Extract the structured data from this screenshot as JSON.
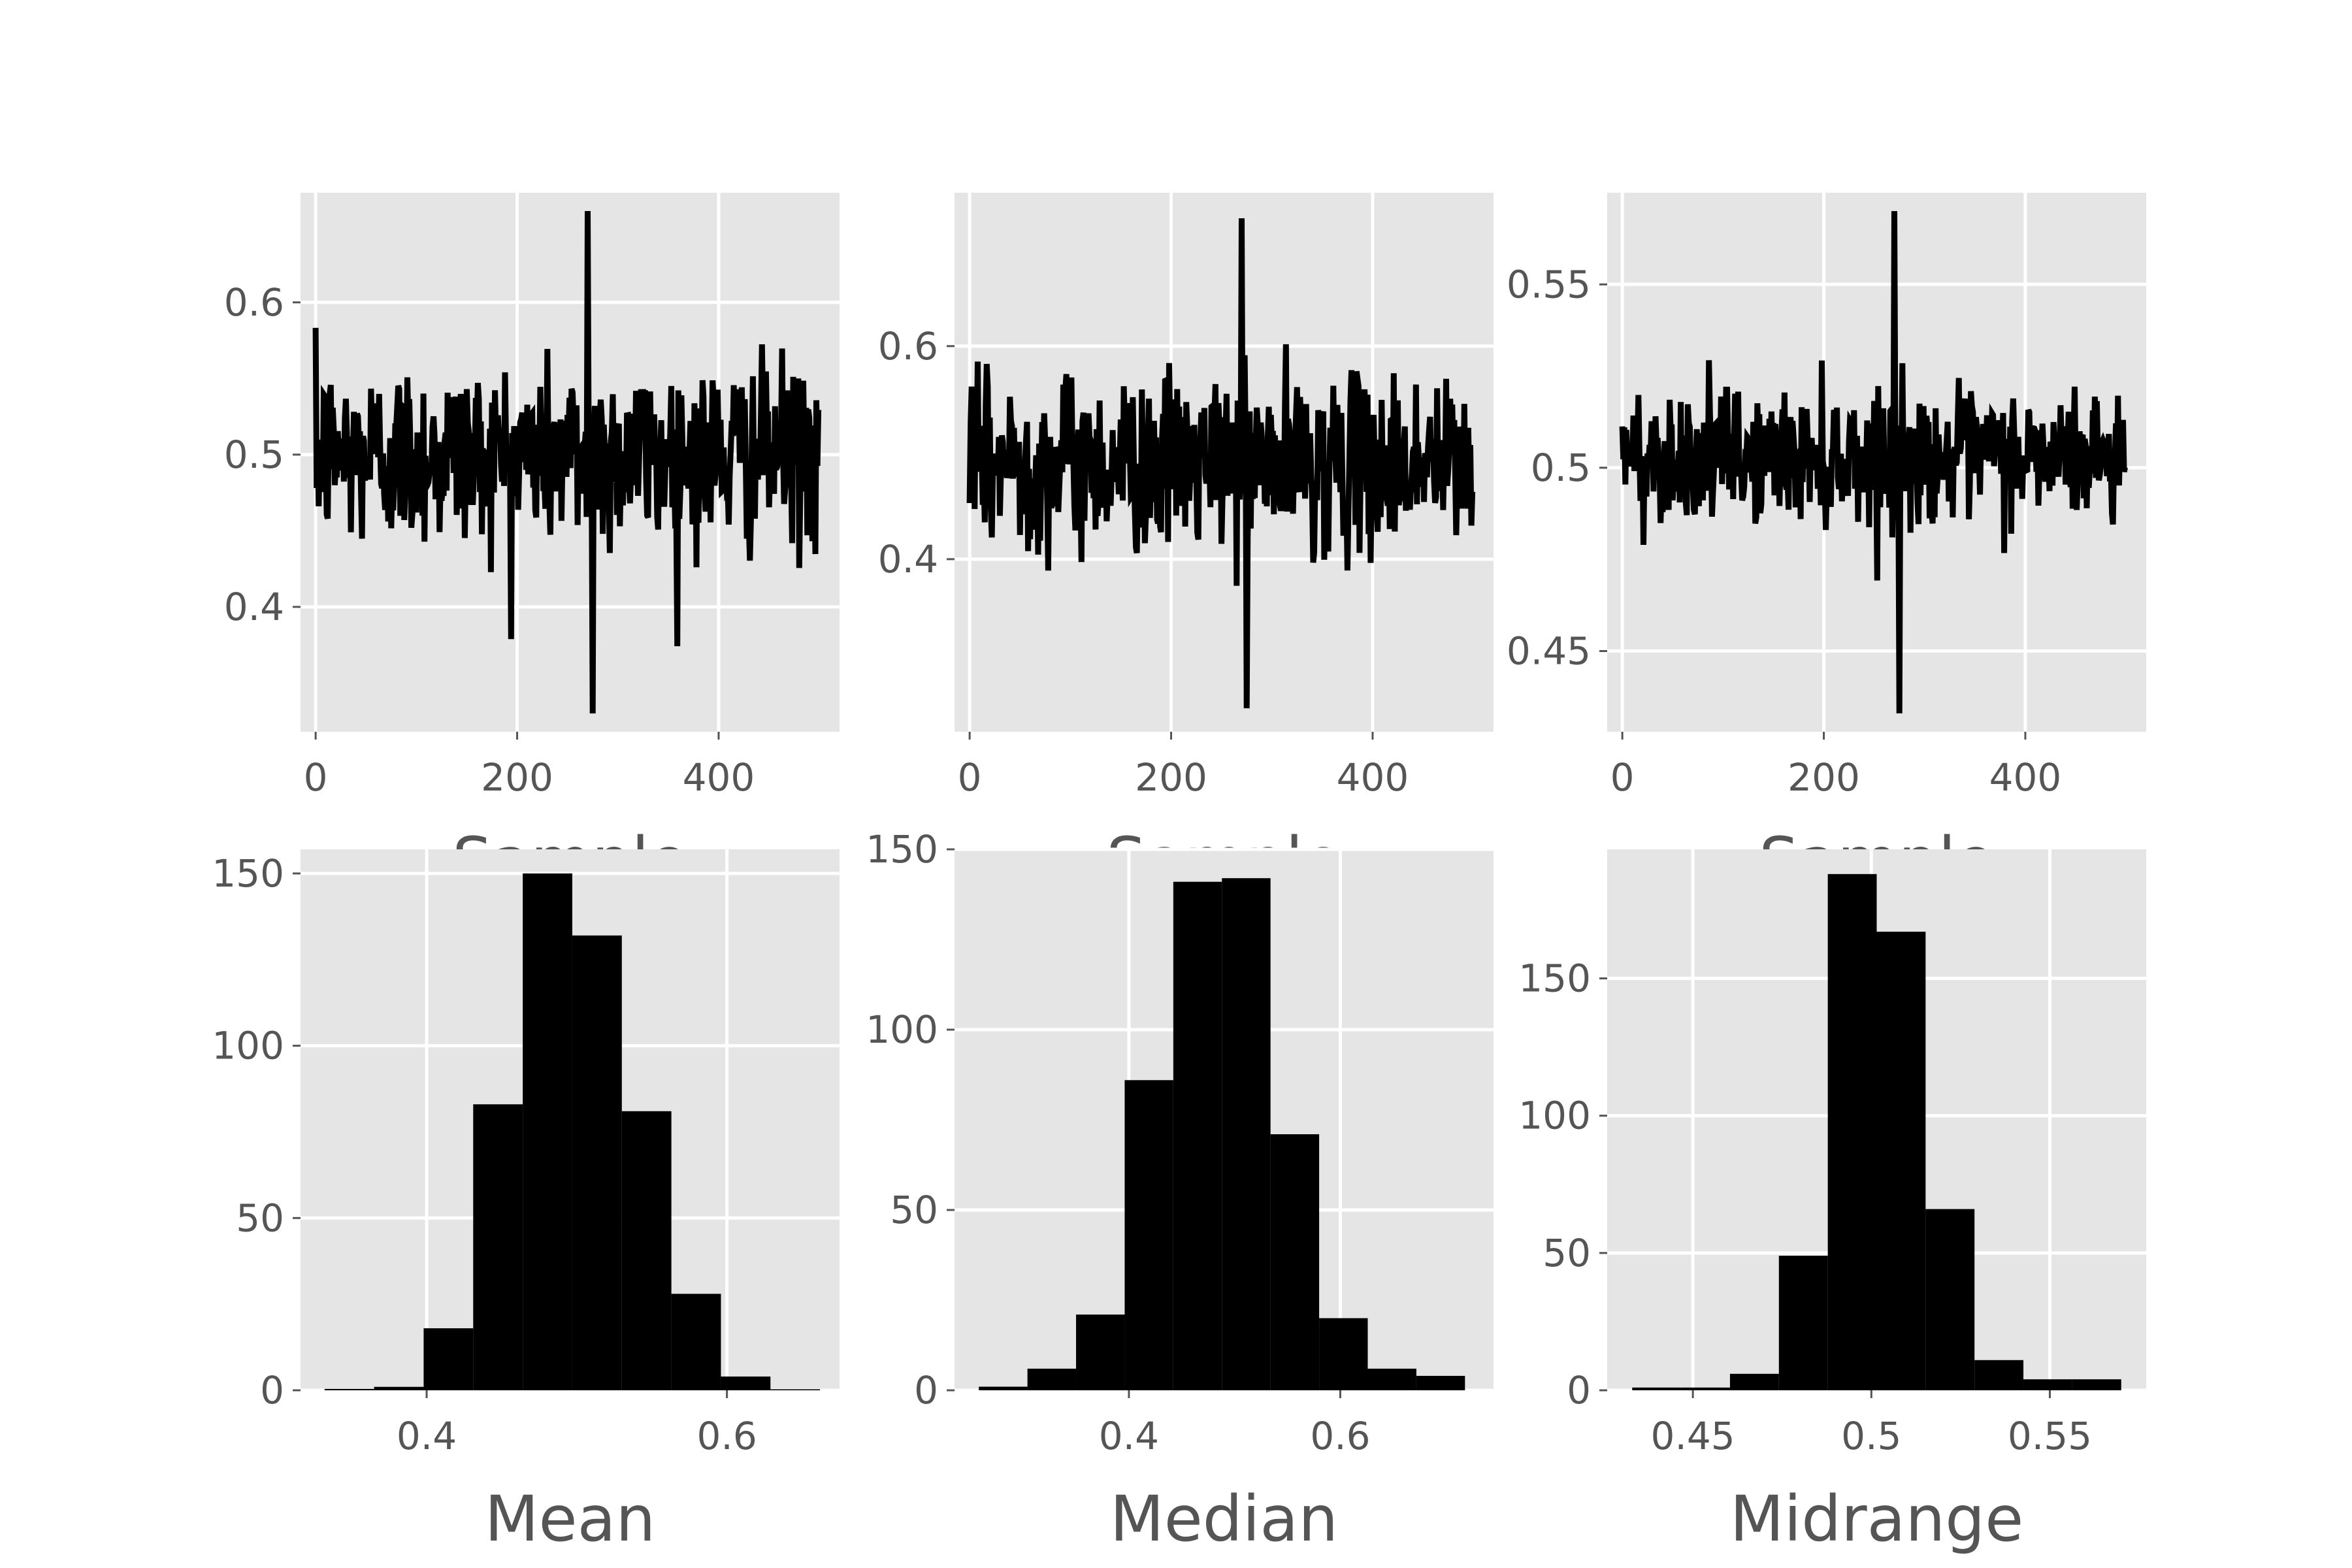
{
  "colors": {
    "panel_background": "#E5E5E5",
    "grid": "#FFFFFF",
    "mark": "#000000",
    "tick_text": "#555555"
  },
  "chart_data": [
    {
      "type": "line",
      "xlabel": "Sample",
      "xlim": [
        -15,
        520
      ],
      "ylim": [
        0.318,
        0.672
      ],
      "xticks": [
        0,
        200,
        400
      ],
      "yticks": [
        0.4,
        0.5,
        0.6
      ],
      "grid": true,
      "summary": {
        "n": 500,
        "center": 0.5,
        "typical_low": 0.44,
        "typical_high": 0.56,
        "min": 0.33,
        "max": 0.66
      }
    },
    {
      "type": "line",
      "xlabel": "Sample",
      "xlim": [
        -15,
        520
      ],
      "ylim": [
        0.238,
        0.744
      ],
      "xticks": [
        0,
        200,
        400
      ],
      "yticks": [
        0.4,
        0.6
      ],
      "grid": true,
      "summary": {
        "n": 500,
        "center": 0.49,
        "typical_low": 0.42,
        "typical_high": 0.58,
        "min": 0.26,
        "max": 0.72
      }
    },
    {
      "type": "line",
      "xlabel": "Sample",
      "xlim": [
        -15,
        520
      ],
      "ylim": [
        0.428,
        0.575
      ],
      "xticks": [
        0,
        200,
        400
      ],
      "yticks": [
        0.45,
        0.5,
        0.55
      ],
      "grid": true,
      "summary": {
        "n": 500,
        "center": 0.503,
        "typical_low": 0.485,
        "typical_high": 0.52,
        "min": 0.433,
        "max": 0.57
      }
    },
    {
      "type": "bar",
      "xlabel": "Mean",
      "xlim": [
        0.316,
        0.675
      ],
      "ylim": [
        0,
        157
      ],
      "xticks": [
        0.4,
        0.6
      ],
      "yticks": [
        0,
        50,
        100,
        150
      ],
      "grid": true,
      "bin_edges": [
        0.332,
        0.365,
        0.398,
        0.431,
        0.464,
        0.497,
        0.53,
        0.563,
        0.596,
        0.629,
        0.662
      ],
      "counts": [
        0.4,
        1,
        18,
        83,
        150,
        132,
        81,
        28,
        4,
        0.3
      ]
    },
    {
      "type": "bar",
      "xlabel": "Median",
      "xlim": [
        0.235,
        0.745
      ],
      "ylim": [
        0,
        150
      ],
      "xticks": [
        0.4,
        0.6
      ],
      "yticks": [
        0,
        50,
        100,
        150
      ],
      "grid": true,
      "bin_edges": [
        0.258,
        0.304,
        0.35,
        0.396,
        0.442,
        0.488,
        0.534,
        0.58,
        0.626,
        0.672,
        0.718
      ],
      "counts": [
        1,
        6,
        21,
        86,
        141,
        142,
        71,
        20,
        6,
        4
      ]
    },
    {
      "type": "bar",
      "xlabel": "Midrange",
      "xlim": [
        0.426,
        0.577
      ],
      "ylim": [
        0,
        197
      ],
      "xticks": [
        0.45,
        0.5,
        0.55
      ],
      "yticks": [
        0,
        50,
        100,
        150
      ],
      "grid": true,
      "bin_edges": [
        0.433,
        0.4467,
        0.4604,
        0.4741,
        0.4878,
        0.5015,
        0.5152,
        0.5289,
        0.5426,
        0.5563,
        0.57
      ],
      "counts": [
        1,
        1,
        6,
        49,
        188,
        167,
        66,
        11,
        4,
        4
      ]
    }
  ]
}
